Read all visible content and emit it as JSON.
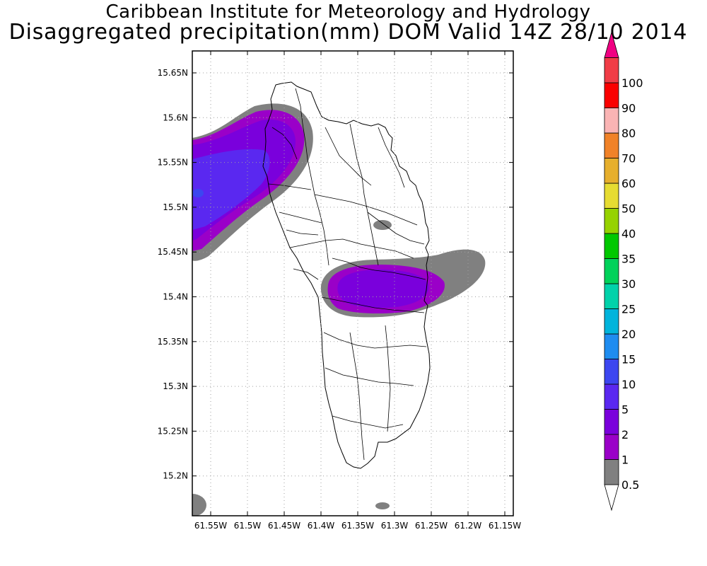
{
  "title_line1": "Caribbean Institute for Meteorology and Hydrology",
  "title_line2": "Disaggregated precipitation(mm) DOM Valid 14Z 28/10 2014",
  "map": {
    "lat_ticks": [
      "15.65N",
      "15.6N",
      "15.55N",
      "15.5N",
      "15.45N",
      "15.4N",
      "15.35N",
      "15.3N",
      "15.25N",
      "15.2N"
    ],
    "lon_ticks": [
      "61.55W",
      "61.5W",
      "61.45W",
      "61.4W",
      "61.35W",
      "61.3W",
      "61.25W",
      "61.2W",
      "61.15W"
    ]
  },
  "colorbar": {
    "levels": [
      {
        "label": "0.5",
        "color": "#808080"
      },
      {
        "label": "1",
        "color": "#9a00c8"
      },
      {
        "label": "2",
        "color": "#7a00dc"
      },
      {
        "label": "5",
        "color": "#5a28f0"
      },
      {
        "label": "10",
        "color": "#3c46f0"
      },
      {
        "label": "15",
        "color": "#1e8cf0"
      },
      {
        "label": "20",
        "color": "#00b4dc"
      },
      {
        "label": "25",
        "color": "#00d2aa"
      },
      {
        "label": "30",
        "color": "#00d25a"
      },
      {
        "label": "35",
        "color": "#00c800"
      },
      {
        "label": "40",
        "color": "#96d200"
      },
      {
        "label": "50",
        "color": "#e6dc32"
      },
      {
        "label": "60",
        "color": "#e6af2d"
      },
      {
        "label": "70",
        "color": "#f08228"
      },
      {
        "label": "80",
        "color": "#fab4b4"
      },
      {
        "label": "90",
        "color": "#fa0000"
      },
      {
        "label": "100",
        "color": "#f03c46"
      }
    ],
    "over_color": "#f00082"
  }
}
